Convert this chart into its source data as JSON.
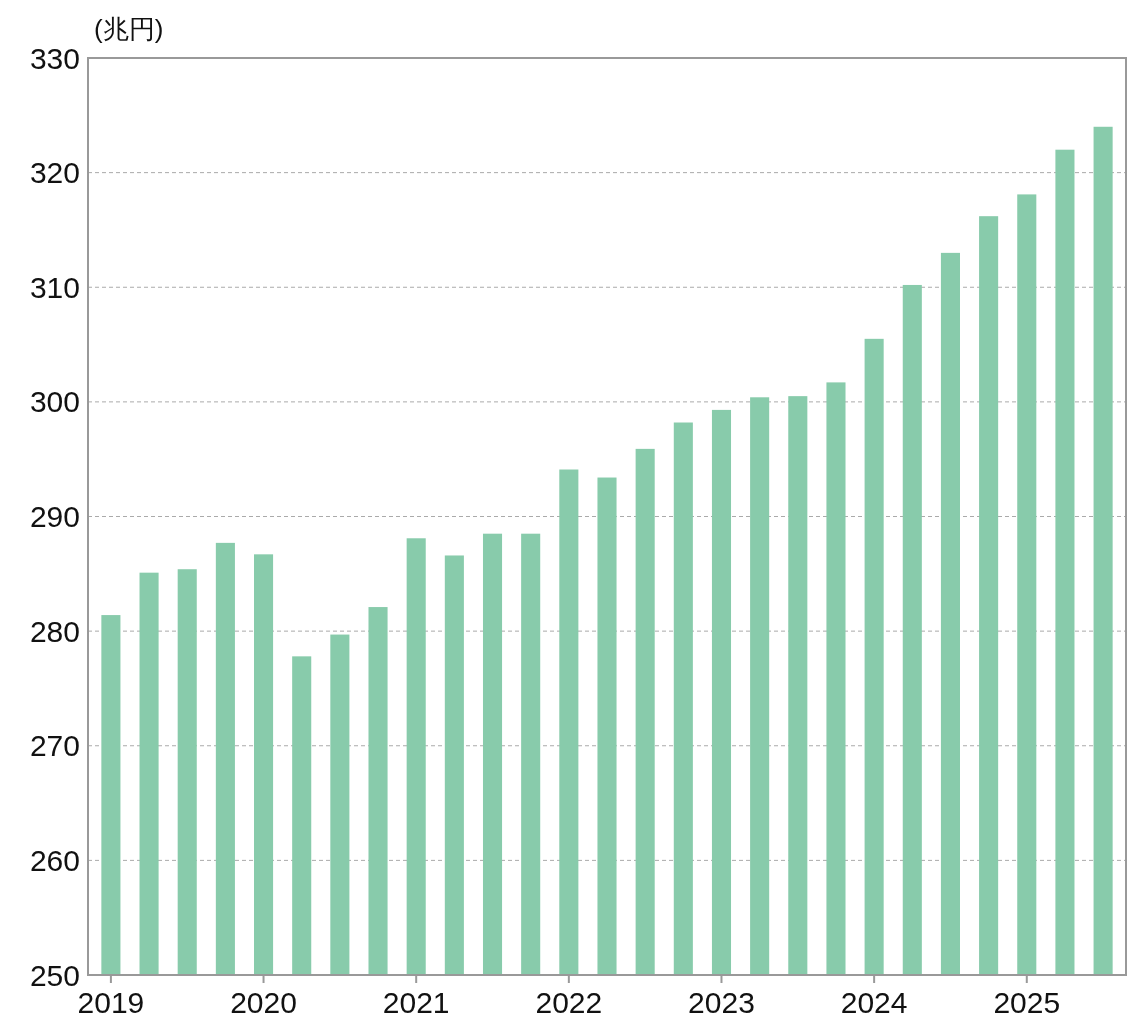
{
  "chart_data": {
    "type": "bar",
    "ylabel": "(兆円)",
    "categories": [
      "2019",
      null,
      null,
      null,
      "2020",
      null,
      null,
      null,
      "2021",
      null,
      null,
      null,
      "2022",
      null,
      null,
      null,
      "2023",
      null,
      null,
      null,
      "2024",
      null,
      null,
      null,
      "2025",
      null,
      null
    ],
    "values": [
      281.4,
      285.1,
      285.4,
      287.7,
      286.7,
      277.8,
      279.7,
      282.1,
      288.1,
      286.6,
      288.5,
      288.5,
      294.1,
      293.4,
      295.9,
      298.2,
      299.3,
      300.4,
      300.5,
      301.7,
      305.5,
      310.2,
      313.0,
      316.2,
      318.1,
      322.0,
      324.0
    ],
    "color": "#88cbab",
    "ylim": [
      250,
      330
    ],
    "yticks": [
      250,
      260,
      270,
      280,
      290,
      300,
      310,
      320,
      330
    ],
    "grid": "y"
  }
}
